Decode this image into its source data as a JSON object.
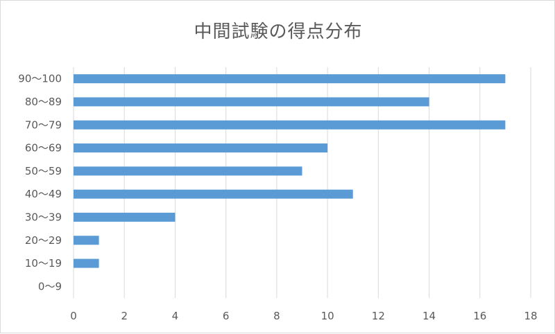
{
  "chart_data": {
    "type": "bar",
    "orientation": "horizontal",
    "title": "中間試験の得点分布",
    "categories": [
      "0〜9",
      "10〜19",
      "20〜29",
      "30〜39",
      "40〜49",
      "50〜59",
      "60〜69",
      "70〜79",
      "80〜89",
      "90〜100"
    ],
    "values": [
      0,
      1,
      1,
      4,
      11,
      9,
      10,
      17,
      14,
      17
    ],
    "xlim": [
      0,
      18
    ],
    "x_ticks": [
      0,
      2,
      4,
      6,
      8,
      10,
      12,
      14,
      16,
      18
    ],
    "xlabel": "",
    "ylabel": "",
    "grid": "vertical",
    "legend": "none",
    "bar_color": "#5B9BD5",
    "grid_color": "#d9d9d9",
    "text_color": "#595959"
  }
}
